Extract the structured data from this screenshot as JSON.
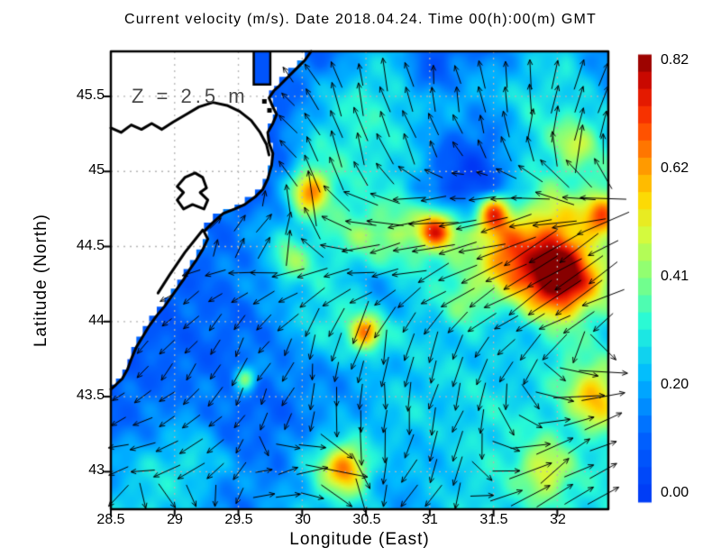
{
  "figure": {
    "title": "Current velocity (m/s). Date 2018.04.24. Time 00(h):00(m) GMT",
    "depth_annotation": "Z = 2.5 m",
    "units": "m/s"
  },
  "chart_data": {
    "type": "heatmap",
    "subtype": "geo-current-field-with-quiver",
    "title": "Current velocity (m/s). Date 2018.04.24. Time 00(h):00(m) GMT",
    "depth_annotation": "Z = 2.5 m",
    "units": "m/s",
    "grid_on": true,
    "x_axis": {
      "label": "Longitude (East)",
      "range": [
        28.5,
        32.4
      ],
      "ticks": [
        "28.5",
        "29",
        "29.5",
        "30",
        "30.5",
        "31",
        "31.5",
        "32"
      ],
      "tick_values": [
        28.5,
        29,
        29.5,
        30,
        30.5,
        31,
        31.5,
        32
      ]
    },
    "y_axis": {
      "label": "Latitude (North)",
      "range": [
        42.75,
        45.8
      ],
      "ticks": [
        "45.5",
        "45",
        "44.5",
        "44",
        "43.5",
        "43"
      ],
      "tick_values": [
        45.5,
        45,
        44.5,
        44,
        43.5,
        43
      ]
    },
    "colorbar": {
      "min": 0.0,
      "max": 0.8244,
      "ticks": [
        "0.82",
        "0.62",
        "0.41",
        "0.20",
        "0.00"
      ],
      "tick_values": [
        0.82,
        0.62,
        0.41,
        0.2,
        0.0
      ],
      "bands": 26,
      "colormap_stops": [
        [
          0.0,
          0,
          55,
          245
        ],
        [
          0.15,
          0,
          100,
          255
        ],
        [
          0.28,
          0,
          185,
          255
        ],
        [
          0.4,
          40,
          250,
          215
        ],
        [
          0.5,
          130,
          255,
          125
        ],
        [
          0.6,
          215,
          250,
          60
        ],
        [
          0.68,
          255,
          215,
          0
        ],
        [
          0.76,
          255,
          145,
          0
        ],
        [
          0.85,
          255,
          60,
          0
        ],
        [
          0.93,
          215,
          10,
          0
        ],
        [
          1.0,
          135,
          0,
          0
        ]
      ]
    },
    "grid": {
      "lon_range": [
        28.5,
        32.4
      ],
      "lat_range": [
        45.8,
        42.75
      ],
      "ncols": 13,
      "nrows": 11,
      "speed": [
        [
          0.05,
          0.05,
          0.05,
          0.08,
          0.1,
          0.12,
          0.2,
          0.28,
          0.12,
          0.15,
          0.22,
          0.28,
          0.15
        ],
        [
          0.05,
          0.05,
          0.05,
          0.08,
          0.1,
          0.22,
          0.33,
          0.3,
          0.25,
          0.3,
          0.33,
          0.28,
          0.22
        ],
        [
          0.05,
          0.05,
          0.05,
          0.08,
          0.12,
          0.3,
          0.33,
          0.28,
          0.2,
          0.22,
          0.3,
          0.33,
          0.3
        ],
        [
          0.05,
          0.05,
          0.05,
          0.1,
          0.15,
          0.35,
          0.3,
          0.3,
          0.15,
          0.12,
          0.25,
          0.3,
          0.33
        ],
        [
          0.05,
          0.08,
          0.12,
          0.15,
          0.25,
          0.3,
          0.42,
          0.45,
          0.4,
          0.42,
          0.35,
          0.35,
          0.35
        ],
        [
          0.08,
          0.1,
          0.12,
          0.15,
          0.2,
          0.3,
          0.25,
          0.3,
          0.3,
          0.35,
          0.45,
          0.5,
          0.4
        ],
        [
          0.08,
          0.1,
          0.12,
          0.12,
          0.18,
          0.3,
          0.38,
          0.3,
          0.22,
          0.2,
          0.25,
          0.3,
          0.28
        ],
        [
          0.1,
          0.12,
          0.12,
          0.12,
          0.15,
          0.18,
          0.2,
          0.25,
          0.28,
          0.28,
          0.25,
          0.35,
          0.3
        ],
        [
          0.12,
          0.15,
          0.2,
          0.12,
          0.12,
          0.18,
          0.22,
          0.28,
          0.25,
          0.3,
          0.3,
          0.3,
          0.33
        ],
        [
          0.2,
          0.28,
          0.3,
          0.18,
          0.15,
          0.3,
          0.25,
          0.22,
          0.25,
          0.3,
          0.3,
          0.3,
          0.3
        ],
        [
          0.25,
          0.3,
          0.22,
          0.15,
          0.2,
          0.28,
          0.25,
          0.2,
          0.25,
          0.3,
          0.28,
          0.3,
          0.3
        ]
      ],
      "u": [
        [
          0,
          0,
          0,
          0,
          -0.5,
          -0.6,
          -0.3,
          -0.1,
          -0.2,
          -0.3,
          -0.2,
          0.2,
          0.3
        ],
        [
          0,
          0,
          0,
          0,
          -0.6,
          -0.5,
          -0.3,
          -0.2,
          -0.2,
          -0.2,
          0.1,
          0.2,
          0.3
        ],
        [
          0,
          0,
          0,
          0,
          -0.7,
          -0.4,
          -0.2,
          -0.3,
          -0.4,
          -0.3,
          -0.1,
          0.1,
          0.2
        ],
        [
          0,
          0,
          0,
          0.3,
          -0.2,
          -0.3,
          -0.6,
          -0.8,
          -1,
          -1,
          -0.8,
          -0.6,
          -0.5
        ],
        [
          0,
          0,
          0.3,
          0.4,
          0.4,
          -0.2,
          -1,
          -1,
          -1,
          -1,
          -0.9,
          -0.8,
          -0.8
        ],
        [
          -0.3,
          -0.5,
          -0.6,
          -0.5,
          -0.6,
          -0.6,
          -0.8,
          -0.9,
          -0.8,
          -0.9,
          -0.9,
          -0.8,
          -0.9
        ],
        [
          -0.5,
          -0.5,
          -0.4,
          -0.3,
          -0.4,
          -0.3,
          -0.3,
          -0.3,
          -0.4,
          -0.6,
          -0.7,
          -0.6,
          -0.4
        ],
        [
          -0.4,
          -0.3,
          -0.3,
          -0.2,
          -0.3,
          -0.1,
          -0.1,
          -0.1,
          -0.2,
          -0.3,
          -0.2,
          0.4,
          0.8
        ],
        [
          -0.5,
          -0.6,
          -0.5,
          -0.3,
          -0.2,
          -0.1,
          0,
          -0.1,
          -0.2,
          -0.1,
          0.3,
          0.6,
          0.8
        ],
        [
          -0.9,
          -0.9,
          -0.7,
          -0.3,
          0.5,
          0.7,
          0.2,
          -0.3,
          -0.2,
          0.2,
          0.5,
          0.6,
          0.7
        ],
        [
          0.2,
          0.5,
          0.4,
          -0.1,
          0.5,
          0.5,
          0.2,
          -0.3,
          -0.3,
          0.3,
          0.6,
          0.7,
          0.5
        ]
      ],
      "v": [
        [
          0,
          0,
          0,
          0,
          0.5,
          0.7,
          1,
          1,
          0.9,
          0.8,
          0.9,
          0.9,
          0.8
        ],
        [
          0,
          0,
          0,
          0,
          0.6,
          0.8,
          1,
          1,
          1,
          0.9,
          1,
          0.9,
          0.9
        ],
        [
          0,
          0,
          0,
          0,
          0.5,
          0.9,
          1,
          0.9,
          0.8,
          0.8,
          0.9,
          0.9,
          0.8
        ],
        [
          0,
          0,
          0,
          0.5,
          0.6,
          0.9,
          0.4,
          0.1,
          -0.1,
          -0.1,
          0.2,
          0.3,
          0.2
        ],
        [
          0,
          0,
          0.2,
          0.5,
          0.5,
          0.3,
          -0.1,
          -0.1,
          -0.2,
          -0.2,
          -0.3,
          -0.4,
          -0.3
        ],
        [
          -0.2,
          -0.2,
          -0.3,
          -0.1,
          -0.2,
          -0.3,
          -0.2,
          -0.3,
          -0.4,
          -0.5,
          -0.6,
          -0.6,
          -0.5
        ],
        [
          -0.4,
          -0.3,
          -0.4,
          -0.3,
          -0.4,
          -0.5,
          -0.7,
          -0.7,
          -0.6,
          -0.5,
          -0.4,
          -0.3,
          -0.3
        ],
        [
          -0.5,
          -0.4,
          -0.5,
          -0.6,
          -0.5,
          -0.7,
          -0.8,
          -0.8,
          -0.7,
          -0.5,
          -0.4,
          -0.1,
          0.1
        ],
        [
          -0.3,
          -0.3,
          -0.4,
          -0.5,
          -0.4,
          -0.3,
          -0.6,
          -0.7,
          -0.6,
          -0.5,
          -0.2,
          0.1,
          0.2
        ],
        [
          -0.25,
          -0.15,
          -0.3,
          -0.3,
          0.1,
          0.1,
          -0.5,
          -0.6,
          -0.5,
          -0.3,
          0.3,
          0.4,
          0.3
        ],
        [
          -0.1,
          -0.1,
          -0.2,
          -0.2,
          0.2,
          -0.2,
          -0.3,
          -0.4,
          -0.3,
          0.1,
          0.3,
          0.3,
          0.2
        ]
      ]
    },
    "features_blobs": [
      {
        "lon": 32.0,
        "lat": 44.3,
        "sigma": 0.2,
        "amp": 0.45
      },
      {
        "lon": 31.62,
        "lat": 44.45,
        "sigma": 0.14,
        "amp": 0.25
      },
      {
        "lon": 31.05,
        "lat": 44.62,
        "sigma": 0.09,
        "amp": 0.35
      },
      {
        "lon": 31.5,
        "lat": 44.73,
        "sigma": 0.09,
        "amp": 0.4
      },
      {
        "lon": 31.95,
        "lat": 44.68,
        "sigma": 0.18,
        "amp": 0.18
      },
      {
        "lon": 32.35,
        "lat": 44.72,
        "sigma": 0.1,
        "amp": 0.32
      },
      {
        "lon": 30.05,
        "lat": 44.87,
        "sigma": 0.1,
        "amp": 0.33
      },
      {
        "lon": 30.5,
        "lat": 43.92,
        "sigma": 0.08,
        "amp": 0.33
      },
      {
        "lon": 30.34,
        "lat": 43.02,
        "sigma": 0.12,
        "amp": 0.38
      },
      {
        "lon": 29.55,
        "lat": 43.62,
        "sigma": 0.06,
        "amp": 0.3
      },
      {
        "lon": 32.3,
        "lat": 43.5,
        "sigma": 0.14,
        "amp": 0.28
      },
      {
        "lon": 31.9,
        "lat": 43.0,
        "sigma": 0.14,
        "amp": 0.22
      },
      {
        "lon": 31.3,
        "lat": 44.1,
        "sigma": 0.15,
        "amp": 0.15
      },
      {
        "lon": 29.9,
        "lat": 44.4,
        "sigma": 0.1,
        "amp": 0.18
      },
      {
        "lon": 32.15,
        "lat": 45.2,
        "sigma": 0.12,
        "amp": 0.15
      },
      {
        "lon": 31.3,
        "lat": 45.0,
        "sigma": 0.2,
        "amp": -0.12
      },
      {
        "lon": 30.95,
        "lat": 45.65,
        "sigma": 0.15,
        "amp": -0.1
      },
      {
        "lon": 30.65,
        "lat": 44.15,
        "sigma": 0.15,
        "amp": -0.08
      },
      {
        "lon": 31.5,
        "lat": 45.4,
        "sigma": 0.18,
        "amp": -0.08
      }
    ],
    "coastline": {
      "sea_edge": [
        [
          30.07,
          45.8
        ],
        [
          30.02,
          45.74
        ],
        [
          29.96,
          45.69
        ],
        [
          29.89,
          45.63
        ],
        [
          29.82,
          45.57
        ],
        [
          29.78,
          45.54
        ],
        [
          29.74,
          45.49
        ],
        [
          29.77,
          45.43
        ],
        [
          29.8,
          45.38
        ],
        [
          29.77,
          45.32
        ],
        [
          29.73,
          45.26
        ],
        [
          29.74,
          45.19
        ],
        [
          29.77,
          45.12
        ],
        [
          29.76,
          45.04
        ],
        [
          29.73,
          44.95
        ],
        [
          29.69,
          44.88
        ],
        [
          29.63,
          44.83
        ],
        [
          29.55,
          44.78
        ],
        [
          29.47,
          44.75
        ],
        [
          29.38,
          44.72
        ],
        [
          29.3,
          44.66
        ],
        [
          29.23,
          44.6
        ],
        [
          29.26,
          44.55
        ],
        [
          29.22,
          44.48
        ],
        [
          29.17,
          44.41
        ],
        [
          29.12,
          44.35
        ],
        [
          29.07,
          44.28
        ],
        [
          29.02,
          44.22
        ],
        [
          28.97,
          44.16
        ],
        [
          28.92,
          44.1
        ],
        [
          28.86,
          44.04
        ],
        [
          28.8,
          43.97
        ],
        [
          28.75,
          43.9
        ],
        [
          28.7,
          43.83
        ],
        [
          28.66,
          43.75
        ],
        [
          28.63,
          43.68
        ],
        [
          28.59,
          43.62
        ],
        [
          28.54,
          43.58
        ],
        [
          28.5,
          43.55
        ]
      ],
      "delta_outline": [
        [
          28.5,
          45.29
        ],
        [
          28.58,
          45.26
        ],
        [
          28.66,
          45.31
        ],
        [
          28.74,
          45.28
        ],
        [
          28.82,
          45.32
        ],
        [
          28.9,
          45.28
        ],
        [
          28.99,
          45.33
        ],
        [
          29.09,
          45.38
        ],
        [
          29.19,
          45.43
        ],
        [
          29.3,
          45.46
        ],
        [
          29.41,
          45.44
        ],
        [
          29.51,
          45.4
        ],
        [
          29.6,
          45.34
        ],
        [
          29.67,
          45.26
        ],
        [
          29.72,
          45.18
        ],
        [
          29.74,
          45.11
        ]
      ],
      "lagoon_ring": [
        [
          29.08,
          44.96
        ],
        [
          29.16,
          44.99
        ],
        [
          29.22,
          44.96
        ],
        [
          29.25,
          44.89
        ],
        [
          29.2,
          44.86
        ],
        [
          29.26,
          44.81
        ],
        [
          29.23,
          44.75
        ],
        [
          29.14,
          44.78
        ],
        [
          29.07,
          44.75
        ],
        [
          29.02,
          44.81
        ],
        [
          29.07,
          44.86
        ],
        [
          29.02,
          44.9
        ],
        [
          29.08,
          44.96
        ]
      ],
      "lagoon_spit": [
        [
          29.22,
          44.61
        ],
        [
          29.08,
          44.46
        ],
        [
          28.96,
          44.31
        ],
        [
          28.87,
          44.19
        ]
      ],
      "islands": [
        [
          29.7,
          45.47
        ],
        [
          29.74,
          45.41
        ]
      ],
      "liman_rect": {
        "lon0": 29.62,
        "lon1": 29.75,
        "lat_top": 45.8,
        "lat_bottom": 45.58,
        "fill_value": 0.08
      }
    },
    "quiver": {
      "lon_start": 28.56,
      "lon_step": 0.19,
      "lat_start": 42.84,
      "lat_step": 0.165,
      "len_base": 10,
      "len_scale": 80,
      "len_max": 70,
      "color": "#000000"
    },
    "style": {
      "land_color": "#ffffff",
      "coast_color": "#000000",
      "coast_width": 3,
      "gridline_color": "#b4b4b4",
      "frame_color": "#000000"
    }
  }
}
